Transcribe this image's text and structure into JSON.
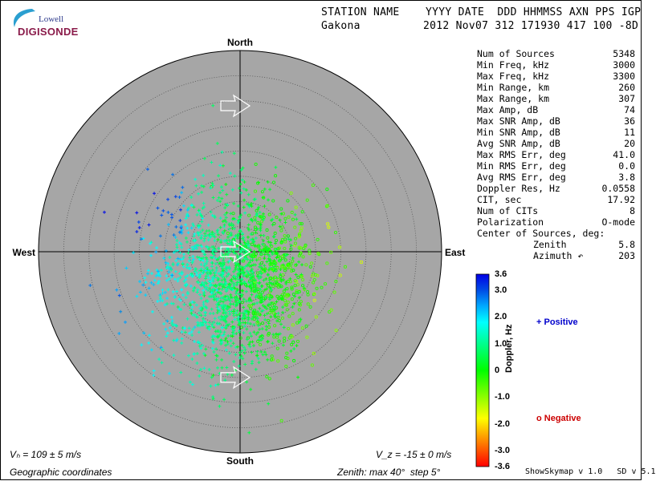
{
  "logo": {
    "line1": "Lowell",
    "line2": "DIGISONDE"
  },
  "header": {
    "columns_line": "STATION NAME    YYYY DATE  DDD HHMMSS AXN PPS IGP",
    "station": "Gakona",
    "values_line": "2012 Nov07 312 171930 417 100 -8D"
  },
  "stats": [
    {
      "label": "Num of Sources",
      "value": "5348"
    },
    {
      "label": "Min Freq, kHz",
      "value": "3000"
    },
    {
      "label": "Max Freq, kHz",
      "value": "3300"
    },
    {
      "label": "Min Range, km",
      "value": "260"
    },
    {
      "label": "Max Range, km",
      "value": "307"
    },
    {
      "label": "Max Amp, dB",
      "value": "74"
    },
    {
      "label": "Max SNR Amp, dB",
      "value": "36"
    },
    {
      "label": "Min SNR Amp, dB",
      "value": "11"
    },
    {
      "label": "Avg SNR Amp, dB",
      "value": "20"
    },
    {
      "label": "Max RMS Err, deg",
      "value": "41.0"
    },
    {
      "label": "Min RMS Err, deg",
      "value": "0.0"
    },
    {
      "label": "Avg RMS Err, deg",
      "value": "3.8"
    },
    {
      "label": "Doppler Res, Hz",
      "value": "0.0558"
    },
    {
      "label": "CIT, sec",
      "value": "17.92"
    },
    {
      "label": "Num of CITs",
      "value": "8"
    },
    {
      "label": "Polarization",
      "value": "O-mode"
    },
    {
      "label": "Center of Sources, deg:",
      "value": ""
    },
    {
      "label": "Zenith",
      "value": "5.8"
    },
    {
      "label": "Azimuth ↶",
      "value": "203"
    }
  ],
  "chart_data": {
    "type": "scatter",
    "projection": "polar skymap",
    "compass": {
      "north": "North",
      "south": "South",
      "east": "East",
      "west": "West"
    },
    "zenith_max_deg": 40,
    "zenith_step_deg": 5,
    "grid": true,
    "source_count": 5348,
    "center_of_sources": {
      "zenith_deg": 5.8,
      "azimuth_deg": 203
    },
    "colorbar": {
      "title": "Doppler, Hz",
      "range": [
        -3.6,
        3.6
      ],
      "ticks": [
        "3.6",
        "3.0",
        "2.0",
        "1.0",
        "0",
        "-1.0",
        "-2.0",
        "-3.0",
        "-3.6"
      ],
      "positive_label": "+ Positive",
      "negative_label": "o Negative"
    },
    "velocity_arrows": [
      {
        "zenith_deg": 29,
        "azimuth_deg": 0,
        "direction": "east"
      },
      {
        "zenith_deg": 0,
        "azimuth_deg": 0,
        "direction": "east"
      },
      {
        "zenith_deg": 25,
        "azimuth_deg": 180,
        "direction": "east"
      }
    ],
    "cluster": {
      "center_zenith_deg": 5.8,
      "center_azimuth_deg": 203,
      "spread_deg": 9
    }
  },
  "footer": {
    "vh": "Vₕ = 109 ± 5 m/s",
    "vz": "V_z = -15 ± 0 m/s",
    "coords": "Geographic coordinates",
    "zenith": "Zenith: max 40°  step 5°",
    "version": "ShowSkymap v 1.0   SD v 5.1"
  }
}
